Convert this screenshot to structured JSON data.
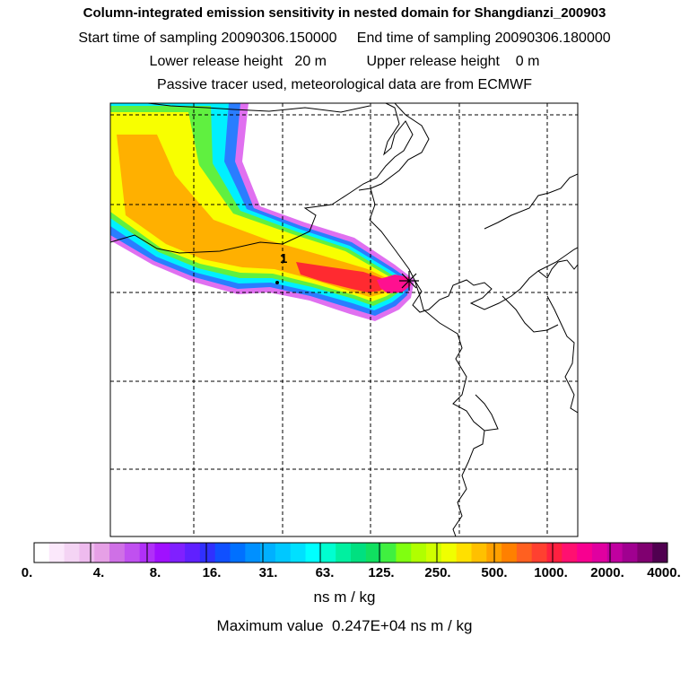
{
  "title": {
    "line1": "Column-integrated emission sensitivity in nested domain for Shangdianzi_200903",
    "line2": "Start time of sampling 20090306.150000     End time of sampling 20090306.180000",
    "line3": "Lower release height   20 m          Upper release height    0 m",
    "line4": "Passive tracer used, meteorological data are from ECMWF"
  },
  "map": {
    "marker_label": "1",
    "max_value_color": "#ff1090"
  },
  "colorbar": {
    "labels": [
      "0.",
      "4.",
      "8.",
      "16.",
      "31.",
      "63.",
      "125.",
      "250.",
      "500.",
      "1000.",
      "2000.",
      "4000."
    ],
    "colors": [
      "#ffffff",
      "#fbe8fb",
      "#f4d4f4",
      "#eebbee",
      "#e6a0e6",
      "#cf70e6",
      "#c050f0",
      "#b030f8",
      "#a010ff",
      "#8020ff",
      "#6020ff",
      "#3030ff",
      "#1050ff",
      "#0070ff",
      "#0090ff",
      "#00b0ff",
      "#00c8ff",
      "#00e0ff",
      "#00ffff",
      "#00ffd0",
      "#00f0a0",
      "#00e080",
      "#10e060",
      "#40f040",
      "#80ff10",
      "#b0ff00",
      "#d0ff00",
      "#f0ff00",
      "#ffe000",
      "#ffc000",
      "#ffa000",
      "#ff8000",
      "#ff6020",
      "#ff4030",
      "#ff2040",
      "#ff1070",
      "#f80090",
      "#e000a0",
      "#c000a0",
      "#a00090",
      "#800070",
      "#500050"
    ],
    "units": "ns m / kg"
  },
  "max_value_text": "Maximum value  0.247E+04 ns m / kg"
}
